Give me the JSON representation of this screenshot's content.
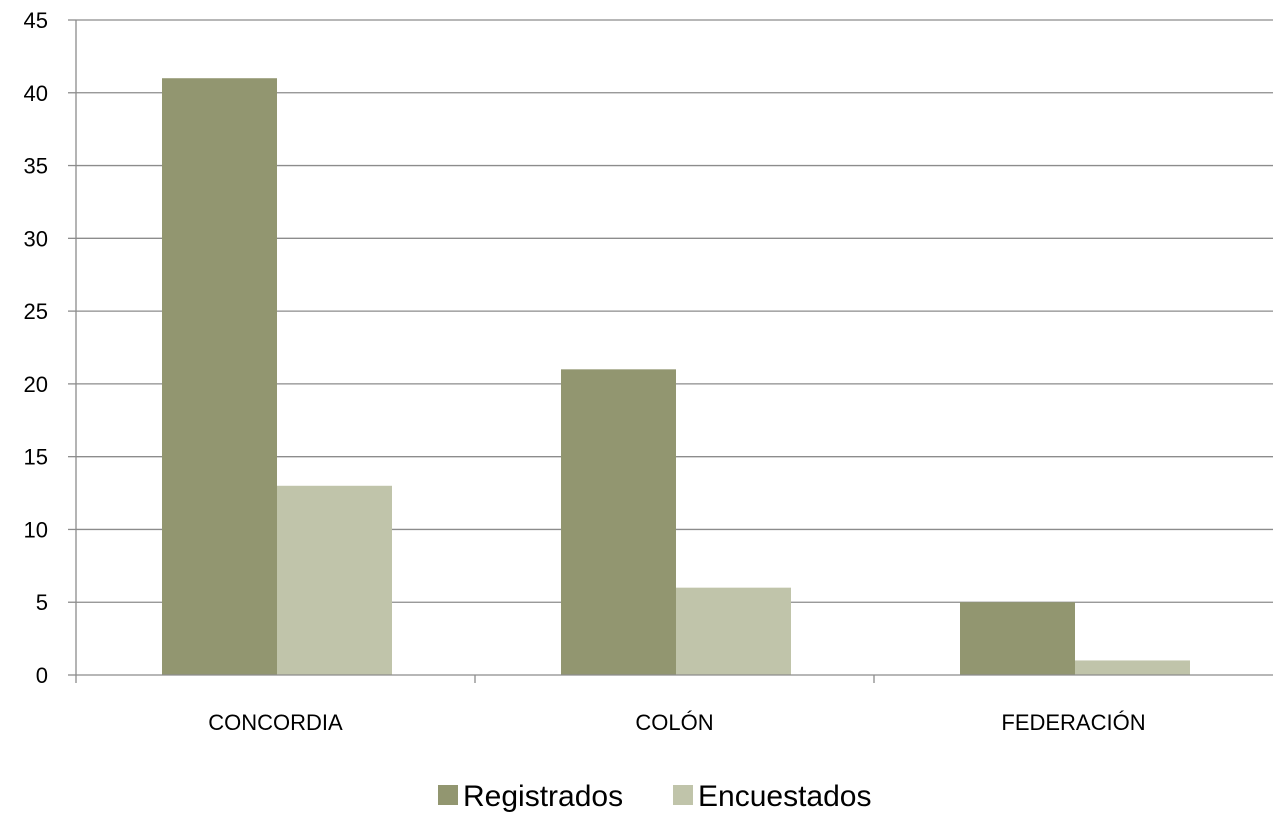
{
  "chart_data": {
    "type": "bar",
    "categories": [
      "CONCORDIA",
      "COLÓN",
      "FEDERACIÓN"
    ],
    "series": [
      {
        "name": "Registrados",
        "values": [
          41,
          21,
          5
        ],
        "color": "#929670"
      },
      {
        "name": "Encuestados",
        "values": [
          13,
          6,
          1
        ],
        "color": "#c0c4aa"
      }
    ],
    "yticks": [
      "0",
      "5",
      "10",
      "15",
      "20",
      "25",
      "30",
      "35",
      "40",
      "45"
    ],
    "ylim": [
      0,
      45
    ],
    "grid": true,
    "legend_position": "bottom",
    "gridline_color": "#8c8c8c",
    "axis_color": "#8c8c8c"
  }
}
